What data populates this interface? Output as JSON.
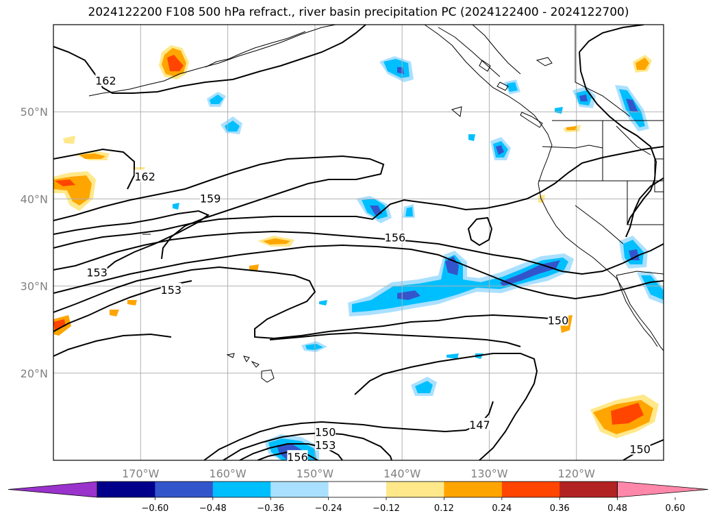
{
  "title": "2024122200 F108 500 hPa refract., river basin precipitation PC (2024122400 - 2024122700)",
  "map": {
    "lon_range": [
      -180,
      -110
    ],
    "lat_range": [
      10,
      60
    ],
    "lon_ticks": [
      {
        "lon": -170,
        "label": "170°W"
      },
      {
        "lon": -160,
        "label": "160°W"
      },
      {
        "lon": -150,
        "label": "150°W"
      },
      {
        "lon": -140,
        "label": "140°W"
      },
      {
        "lon": -130,
        "label": "130°W"
      },
      {
        "lon": -120,
        "label": "120°W"
      }
    ],
    "lat_ticks": [
      {
        "lat": 20,
        "label": "20°N"
      },
      {
        "lat": 30,
        "label": "30°N"
      },
      {
        "lat": 40,
        "label": "40°N"
      },
      {
        "lat": 50,
        "label": "50°N"
      }
    ],
    "grid": true,
    "contour_labels": [
      {
        "text": "162",
        "lon": -174,
        "lat": 53.5
      },
      {
        "text": "162",
        "lon": -169.5,
        "lat": 42.5
      },
      {
        "text": "159",
        "lon": -162,
        "lat": 40
      },
      {
        "text": "153",
        "lon": -175,
        "lat": 31.5
      },
      {
        "text": "153",
        "lon": -166.5,
        "lat": 29.5
      },
      {
        "text": "156",
        "lon": -140.8,
        "lat": 35.5
      },
      {
        "text": "150",
        "lon": -122.1,
        "lat": 26
      },
      {
        "text": "147",
        "lon": -131.1,
        "lat": 14
      },
      {
        "text": "150",
        "lon": -148.8,
        "lat": 13.2
      },
      {
        "text": "153",
        "lon": -148.8,
        "lat": 11.7
      },
      {
        "text": "156",
        "lon": -152,
        "lat": 10.3
      },
      {
        "text": "150",
        "lon": -112.7,
        "lat": 11.2
      }
    ]
  },
  "colorbar": {
    "colors": [
      "#9933cc",
      "#00008b",
      "#3355cc",
      "#00bfff",
      "#aae0ff",
      "#ffffff",
      "#ffe88a",
      "#ffa500",
      "#ff4500",
      "#b22222",
      "#ff88aa"
    ],
    "tick_labels": [
      "−0.60",
      "−0.48",
      "−0.36",
      "−0.24",
      "−0.12",
      "0.12",
      "0.24",
      "0.36",
      "0.48",
      "0.60"
    ]
  }
}
